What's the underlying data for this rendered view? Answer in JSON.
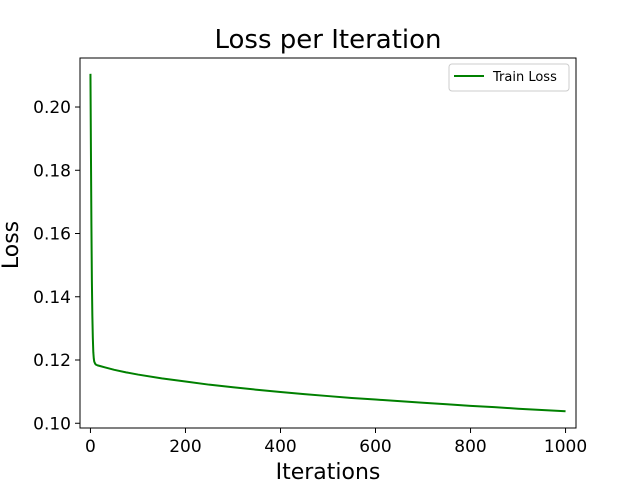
{
  "chart_data": {
    "type": "line",
    "title": "Loss per Iteration",
    "xlabel": "Iterations",
    "ylabel": "Loss",
    "xlim": [
      -22,
      1022
    ],
    "ylim": [
      0.0985,
      0.2155
    ],
    "xticks": [
      0,
      200,
      400,
      600,
      800,
      1000
    ],
    "xtick_labels": [
      "0",
      "200",
      "400",
      "600",
      "800",
      "1000"
    ],
    "yticks": [
      0.1,
      0.12,
      0.14,
      0.16,
      0.18,
      0.2
    ],
    "ytick_labels": [
      "0.10",
      "0.12",
      "0.14",
      "0.16",
      "0.18",
      "0.20"
    ],
    "grid": false,
    "legend_position": "top-right",
    "series": [
      {
        "name": "Train Loss",
        "color": "#008000",
        "x": [
          0,
          1,
          2,
          3,
          4,
          5,
          6,
          7,
          8,
          10,
          12,
          15,
          20,
          30,
          50,
          75,
          100,
          150,
          200,
          250,
          300,
          350,
          400,
          450,
          500,
          550,
          600,
          650,
          700,
          750,
          800,
          850,
          900,
          950,
          1000
        ],
        "y": [
          0.2105,
          0.186,
          0.163,
          0.145,
          0.134,
          0.127,
          0.1225,
          0.1205,
          0.1195,
          0.1188,
          0.1185,
          0.1183,
          0.1181,
          0.1177,
          0.1169,
          0.1161,
          0.1154,
          0.1142,
          0.1132,
          0.1122,
          0.1114,
          0.1106,
          0.1099,
          0.1092,
          0.1086,
          0.108,
          0.1075,
          0.107,
          0.1065,
          0.106,
          0.1055,
          0.1051,
          0.1046,
          0.1042,
          0.1038
        ]
      }
    ]
  }
}
